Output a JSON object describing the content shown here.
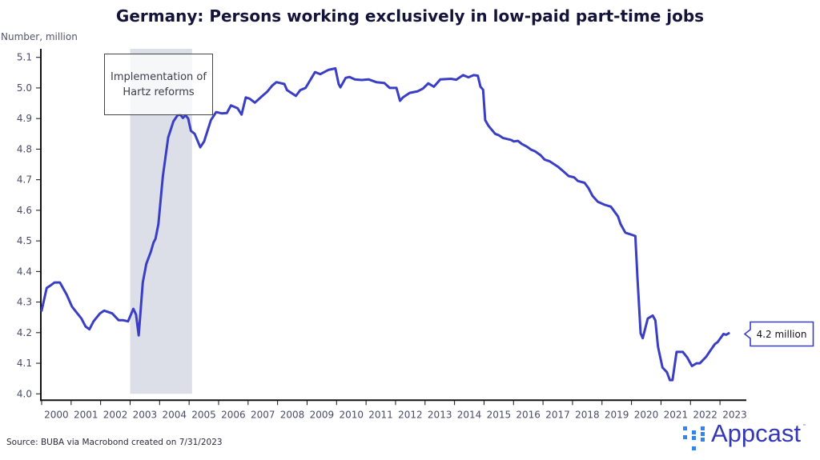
{
  "chart_data": {
    "type": "line",
    "title": "Germany: Persons working exclusively in low-paid part-time jobs",
    "ylabel": "Number, million",
    "xlabel": "",
    "ylim": [
      4.0,
      5.1
    ],
    "yticks": [
      "4.0",
      "4.1",
      "4.2",
      "4.3",
      "4.4",
      "4.5",
      "4.6",
      "4.7",
      "4.8",
      "4.9",
      "5.0",
      "5.1"
    ],
    "xlim": [
      2000,
      2023.85
    ],
    "xticks": [
      "2000",
      "2001",
      "2002",
      "2003",
      "2004",
      "2005",
      "2006",
      "2007",
      "2008",
      "2009",
      "2010",
      "2011",
      "2012",
      "2013",
      "2014",
      "2015",
      "2016",
      "2017",
      "2018",
      "2019",
      "2020",
      "2021",
      "2022",
      "2023"
    ],
    "grid": false,
    "line_color": "#3a3ec4",
    "shaded_region": {
      "from": 2003.0,
      "to": 2005.1,
      "color": "#dcdfe8",
      "label": "Implementation of Hartz reforms"
    },
    "end_label": "4.2 million",
    "series": [
      {
        "x": [
          2000.0,
          2000.17,
          2000.31,
          2000.44,
          2000.62,
          2000.85,
          2001.03,
          2001.35,
          2001.49,
          2001.62,
          2001.76,
          2001.98,
          2002.12,
          2002.39,
          2002.61,
          2002.75,
          2002.93,
          2003.11,
          2003.2,
          2003.29,
          2003.43,
          2003.55,
          2003.7,
          2003.79,
          2003.86,
          2003.96,
          2004.05,
          2004.11,
          2004.29,
          2004.47,
          2004.61,
          2004.7,
          2004.79,
          2004.88,
          2004.97,
          2005.06,
          2005.19,
          2005.38,
          2005.51,
          2005.74,
          2005.92,
          2006.1,
          2006.28,
          2006.42,
          2006.64,
          2006.78,
          2006.92,
          2007.05,
          2007.23,
          2007.46,
          2007.64,
          2007.82,
          2007.96,
          2008.23,
          2008.32,
          2008.62,
          2008.77,
          2008.95,
          2009.27,
          2009.45,
          2009.72,
          2009.96,
          2010.07,
          2010.13,
          2010.31,
          2010.44,
          2010.62,
          2010.85,
          2011.08,
          2011.35,
          2011.62,
          2011.8,
          2012.03,
          2012.15,
          2012.25,
          2012.48,
          2012.75,
          2012.93,
          2013.11,
          2013.3,
          2013.52,
          2013.88,
          2014.06,
          2014.29,
          2014.47,
          2014.65,
          2014.79,
          2014.88,
          2014.97,
          2015.04,
          2015.15,
          2015.38,
          2015.51,
          2015.65,
          2015.92,
          2016.01,
          2016.15,
          2016.28,
          2016.46,
          2016.6,
          2016.73,
          2016.92,
          2017.05,
          2017.23,
          2017.5,
          2017.68,
          2017.87,
          2018.05,
          2018.18,
          2018.41,
          2018.54,
          2018.68,
          2018.86,
          2019.09,
          2019.3,
          2019.4,
          2019.54,
          2019.63,
          2019.79,
          2020.13,
          2020.2,
          2020.31,
          2020.38,
          2020.55,
          2020.72,
          2020.81,
          2020.9,
          2021.05,
          2021.2,
          2021.3,
          2021.39,
          2021.53,
          2021.74,
          2021.89,
          2022.05,
          2022.21,
          2022.32,
          2022.53,
          2022.67,
          2022.83,
          2022.92,
          2023.12,
          2023.21,
          2023.3
        ],
        "y": [
          4.272,
          4.346,
          4.355,
          4.364,
          4.364,
          4.324,
          4.285,
          4.246,
          4.22,
          4.211,
          4.237,
          4.263,
          4.272,
          4.263,
          4.241,
          4.241,
          4.237,
          4.278,
          4.259,
          4.191,
          4.364,
          4.425,
          4.464,
          4.494,
          4.507,
          4.555,
          4.651,
          4.712,
          4.838,
          4.891,
          4.911,
          4.913,
          4.902,
          4.911,
          4.9,
          4.86,
          4.85,
          4.806,
          4.825,
          4.895,
          4.921,
          4.917,
          4.918,
          4.943,
          4.934,
          4.913,
          4.969,
          4.965,
          4.952,
          4.972,
          4.987,
          5.008,
          5.019,
          5.013,
          4.993,
          4.974,
          4.993,
          5.0,
          5.052,
          5.045,
          5.059,
          5.064,
          5.013,
          5.002,
          5.033,
          5.036,
          5.028,
          5.026,
          5.028,
          5.019,
          5.016,
          5.0,
          5.0,
          4.958,
          4.969,
          4.984,
          4.989,
          4.998,
          5.015,
          5.004,
          5.028,
          5.03,
          5.027,
          5.042,
          5.035,
          5.042,
          5.04,
          5.004,
          4.994,
          4.895,
          4.876,
          4.85,
          4.845,
          4.836,
          4.83,
          4.825,
          4.827,
          4.817,
          4.808,
          4.798,
          4.793,
          4.78,
          4.766,
          4.76,
          4.743,
          4.728,
          4.712,
          4.708,
          4.696,
          4.69,
          4.673,
          4.647,
          4.628,
          4.618,
          4.612,
          4.599,
          4.58,
          4.555,
          4.527,
          4.516,
          4.381,
          4.198,
          4.182,
          4.246,
          4.256,
          4.24,
          4.154,
          4.086,
          4.071,
          4.045,
          4.045,
          4.137,
          4.137,
          4.119,
          4.091,
          4.1,
          4.1,
          4.121,
          4.141,
          4.163,
          4.169,
          4.196,
          4.193,
          4.198
        ]
      }
    ]
  },
  "footer": {
    "source": "Source: BUBA via Macrobond created on 7/31/2023",
    "logo_text": "Appcast",
    "logo_tm": "™"
  }
}
